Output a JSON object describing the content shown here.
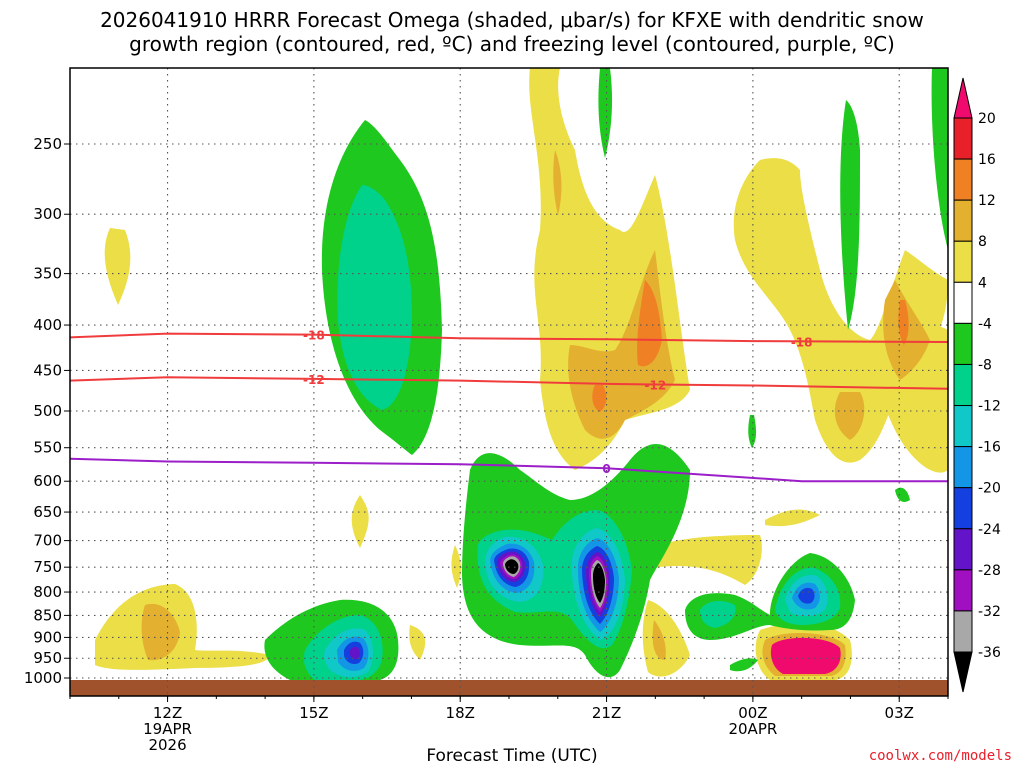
{
  "title_line1": "2026041910 HRRR Forecast Omega (shaded, μbar/s) for KFXE with dendritic snow",
  "title_line2": "growth region (contoured, red, ºC) and freezing level (contoured, purple, ºC)",
  "credit": "coolwx.com/models",
  "chart_data": {
    "type": "heatmap",
    "xlabel": "Forecast Time (UTC)",
    "ylabel": "",
    "y_ticks": [
      "250",
      "300",
      "350",
      "400",
      "450",
      "500",
      "550",
      "600",
      "650",
      "700",
      "750",
      "800",
      "850",
      "900",
      "950",
      "1000"
    ],
    "y_scale": "log-pressure",
    "x_ticks": [
      {
        "label": "12Z",
        "sub1": "19APR",
        "sub2": "2026",
        "hour": 12
      },
      {
        "label": "15Z",
        "sub1": "",
        "sub2": "",
        "hour": 15
      },
      {
        "label": "18Z",
        "sub1": "",
        "sub2": "",
        "hour": 18
      },
      {
        "label": "21Z",
        "sub1": "",
        "sub2": "",
        "hour": 21
      },
      {
        "label": "00Z",
        "sub1": "20APR",
        "sub2": "",
        "hour": 24
      },
      {
        "label": "03Z",
        "sub1": "",
        "sub2": "",
        "hour": 27
      }
    ],
    "xlim_hours": [
      10,
      28
    ],
    "ylim": [
      1000,
      200
    ],
    "grid": true,
    "colorbar_ticks": [
      "20",
      "16",
      "12",
      "8",
      "4",
      "-4",
      "-8",
      "-12",
      "-16",
      "-20",
      "-24",
      "-28",
      "-32",
      "-36"
    ],
    "colorbar_colors": [
      "#f00a6e",
      "#e8202a",
      "#ef8024",
      "#e3b030",
      "#ebde46",
      "#ffffff",
      "#1ec81e",
      "#00d28c",
      "#10c8c8",
      "#1496e6",
      "#1440e0",
      "#6414c8",
      "#a010c0",
      "#a8a8a8",
      "#000000"
    ],
    "contours": [
      {
        "label": "-18",
        "color": "#f03c3c",
        "pressure": [
          413,
          409,
          410,
          414,
          415,
          417,
          418
        ],
        "hours": [
          10,
          12,
          15,
          18,
          21,
          24,
          28
        ]
      },
      {
        "label": "-12",
        "color": "#f03c3c",
        "pressure": [
          462,
          458,
          460,
          462,
          466,
          468,
          472
        ],
        "hours": [
          10,
          12,
          15,
          18,
          21,
          24,
          28
        ]
      },
      {
        "label": "0",
        "color": "#9b1ec8",
        "pressure": [
          566,
          570,
          572,
          574,
          580,
          600,
          600
        ],
        "hours": [
          10,
          12,
          15,
          18,
          21,
          25,
          28
        ]
      }
    ],
    "omega_regions": [
      {
        "name": "ascent-15Z-upper",
        "min_value": -16,
        "hour_center": 16.8,
        "pressure_range": [
          230,
          560
        ]
      },
      {
        "name": "ascent-19Z-midlevel",
        "min_value": -36,
        "hour_center": 19.1,
        "pressure_range": [
          540,
          970
        ]
      },
      {
        "name": "ascent-21Z-midlevel",
        "min_value": -36,
        "hour_center": 21.0,
        "pressure_range": [
          560,
          990
        ]
      },
      {
        "name": "ascent-16Z-lowlevel",
        "min_value": -28,
        "hour_center": 16.0,
        "pressure_range": [
          870,
          980
        ]
      },
      {
        "name": "ascent-01Z-lowlevel",
        "min_value": -20,
        "hour_center": 25.1,
        "pressure_range": [
          720,
          880
        ]
      },
      {
        "name": "descent-01Z-lowlevel",
        "max_value": 24,
        "hour_center": 25.1,
        "pressure_range": [
          900,
          990
        ]
      },
      {
        "name": "descent-21Z-upper",
        "max_value": 12,
        "hour_center": 20.8,
        "pressure_range": [
          200,
          560
        ]
      },
      {
        "name": "descent-02Z-upper",
        "max_value": 12,
        "hour_center": 26.7,
        "pressure_range": [
          290,
          580
        ]
      }
    ]
  }
}
